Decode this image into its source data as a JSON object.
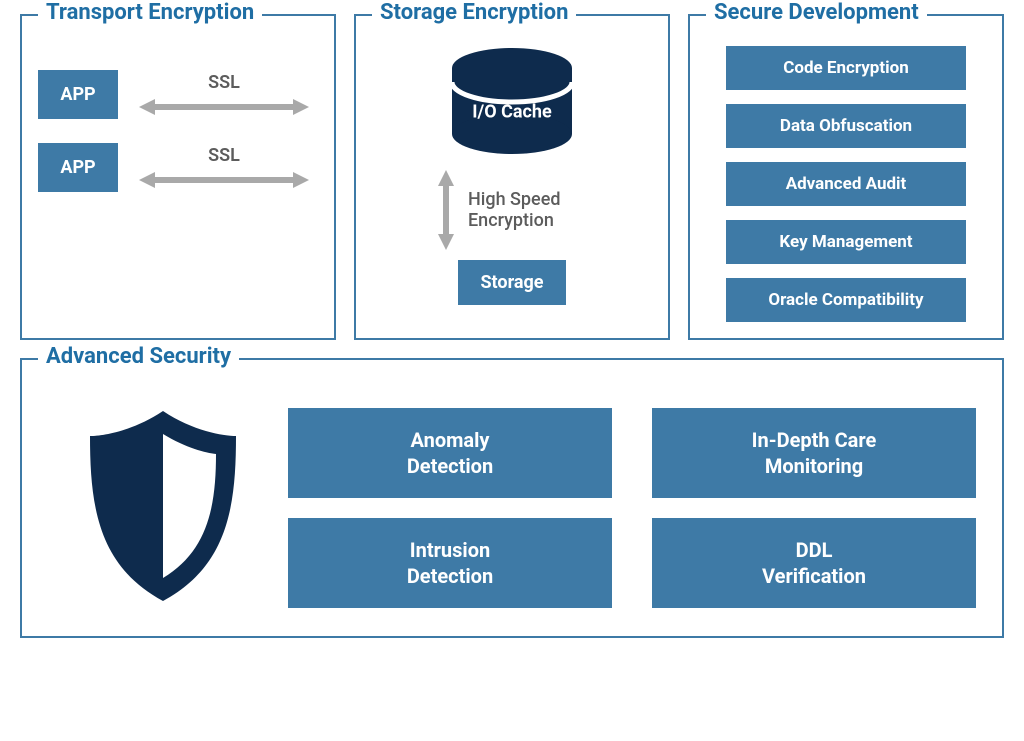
{
  "colors": {
    "border": "#3e7aa6",
    "title_text": "#1f6ea4",
    "box_primary": "#3e7aa6",
    "box_text": "#ffffff",
    "dark_navy": "#0e2b4d",
    "arrow_gray": "#a9a9a9",
    "label_gray": "#5c5c5c"
  },
  "font": {
    "title_size": 22,
    "title_weight": 700,
    "box_weight": 700
  },
  "panels": {
    "transport": {
      "title": "Transport Encryption",
      "rows": [
        {
          "app_label": "APP",
          "conn_label": "SSL"
        },
        {
          "app_label": "APP",
          "conn_label": "SSL"
        }
      ]
    },
    "storage": {
      "title": "Storage Encryption",
      "cache_label": "I/O Cache",
      "arrow_label": "High Speed Encryption",
      "storage_label": "Storage"
    },
    "secure_dev": {
      "title": "Secure Development",
      "items": [
        "Code Encryption",
        "Data Obfuscation",
        "Advanced Audit",
        "Key Management",
        "Oracle Compatibility"
      ]
    },
    "advanced": {
      "title": "Advanced Security",
      "items": [
        "Anomaly Detection",
        "In-Depth Care Monitoring",
        "Intrusion Detection",
        "DDL Verification"
      ]
    }
  }
}
